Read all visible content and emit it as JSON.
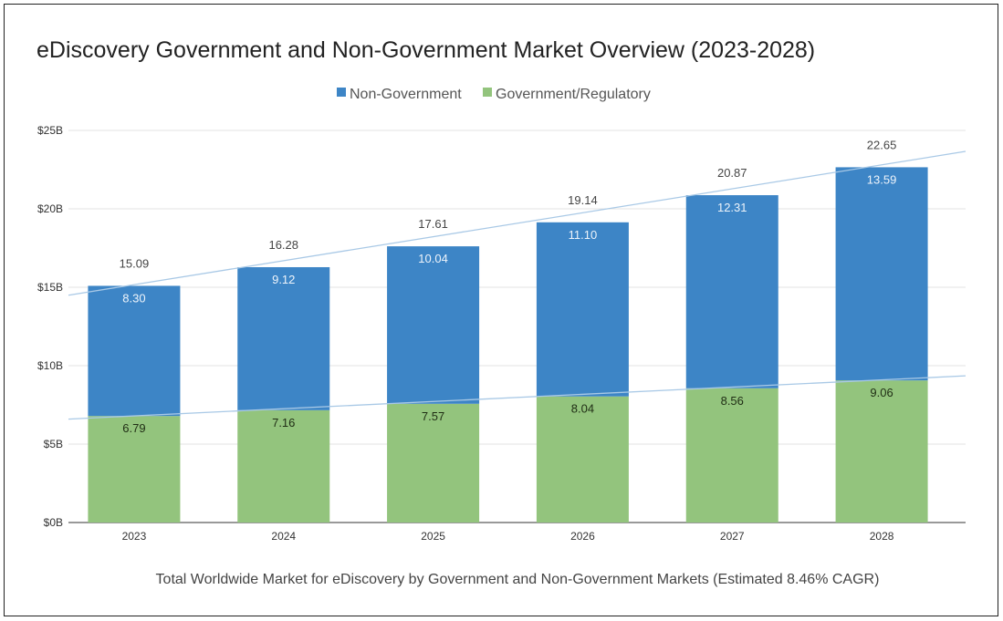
{
  "chart_data": {
    "type": "bar",
    "stacked": true,
    "title": "eDiscovery Government and Non-Government Market Overview (2023-2028)",
    "xlabel": "Total Worldwide Market for eDiscovery by Government and Non-Government Markets (Estimated 8.46% CAGR)",
    "ylabel": "",
    "categories": [
      "2023",
      "2024",
      "2025",
      "2026",
      "2027",
      "2028"
    ],
    "series": [
      {
        "name": "Government/Regulatory",
        "color": "#93c47d",
        "labels": [
          "6.79",
          "7.16",
          "7.57",
          "8.04",
          "8.56",
          "9.06"
        ],
        "values": [
          6.79,
          7.16,
          7.57,
          8.04,
          8.56,
          9.06
        ]
      },
      {
        "name": "Non-Government",
        "color": "#3d85c6",
        "labels": [
          "8.30",
          "9.12",
          "10.04",
          "11.10",
          "12.31",
          "13.59"
        ],
        "values": [
          8.3,
          9.12,
          10.04,
          11.1,
          12.31,
          13.59
        ]
      }
    ],
    "totals": [
      "15.09",
      "16.28",
      "17.61",
      "19.14",
      "20.87",
      "22.65"
    ],
    "legend": [
      "Non-Government",
      "Government/Regulatory"
    ],
    "legend_position": "top",
    "yticks": [
      "$0B",
      "$5B",
      "$10B",
      "$15B",
      "$20B",
      "$25B"
    ],
    "ylim": [
      0,
      25
    ],
    "grid": true,
    "trendlines": true,
    "trendline_color": "#a9c9e6"
  }
}
